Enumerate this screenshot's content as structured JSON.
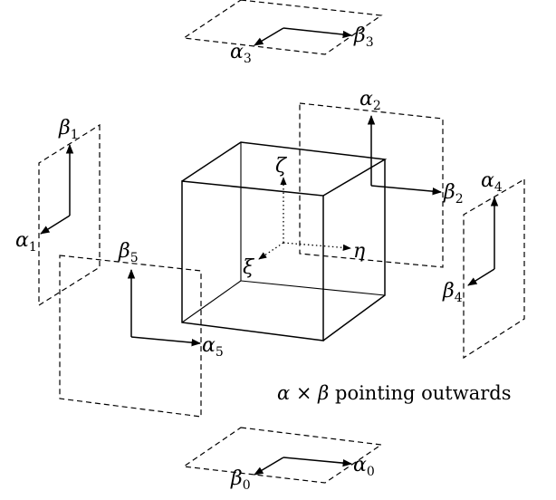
{
  "cube_axes": {
    "zeta": "ζ",
    "eta": "η",
    "xi": "ξ"
  },
  "faces": [
    {
      "id": 0,
      "alpha": "α",
      "alpha_sub": "0",
      "beta": "β",
      "beta_sub": "0"
    },
    {
      "id": 1,
      "alpha": "α",
      "alpha_sub": "1",
      "beta": "β",
      "beta_sub": "1"
    },
    {
      "id": 2,
      "alpha": "α",
      "alpha_sub": "2",
      "beta": "β",
      "beta_sub": "2"
    },
    {
      "id": 3,
      "alpha": "α",
      "alpha_sub": "3",
      "beta": "β",
      "beta_sub": "3"
    },
    {
      "id": 4,
      "alpha": "α",
      "alpha_sub": "4",
      "beta": "β",
      "beta_sub": "4"
    },
    {
      "id": 5,
      "alpha": "α",
      "alpha_sub": "5",
      "beta": "β",
      "beta_sub": "5"
    }
  ],
  "caption": {
    "alpha": "α",
    "times": "×",
    "beta": "β",
    "rest": "pointing outwards"
  }
}
